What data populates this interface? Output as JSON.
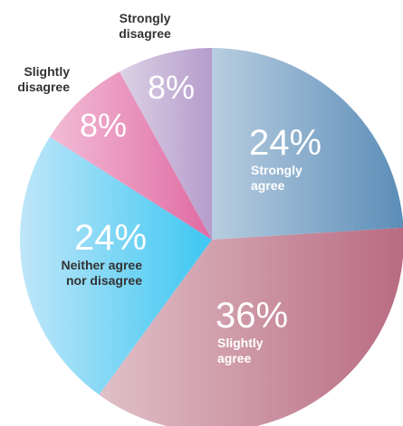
{
  "chart_data": {
    "type": "pie",
    "slices": [
      {
        "label": "Strongly agree",
        "value": 24,
        "pct_text": "24%",
        "label_lines": [
          "Strongly",
          "agree"
        ],
        "color_start": "#b8cde0",
        "color_end": "#5b8db8",
        "label_color": "#ffffff"
      },
      {
        "label": "Slightly agree",
        "value": 36,
        "pct_text": "36%",
        "label_lines": [
          "Slightly",
          "agree"
        ],
        "color_start": "#e0c0c8",
        "color_end": "#b96b82",
        "label_color": "#ffffff"
      },
      {
        "label": "Neither agree nor disagree",
        "value": 24,
        "pct_text": "24%",
        "label_lines": [
          "Neither agree",
          "nor disagree"
        ],
        "color_start": "#bfe6f8",
        "color_end": "#3cc7f2",
        "label_color": "#333333"
      },
      {
        "label": "Slightly disagree",
        "value": 8,
        "pct_text": "8%",
        "label_lines": [
          "Slightly",
          "disagree"
        ],
        "color_start": "#f2bcd6",
        "color_end": "#e06aa2",
        "label_color": "#333333"
      },
      {
        "label": "Strongly disagree",
        "value": 8,
        "pct_text": "8%",
        "label_lines": [
          "Strongly",
          "disagree"
        ],
        "color_start": "#dcd2e6",
        "color_end": "#b59ccb",
        "label_color": "#333333"
      }
    ]
  }
}
